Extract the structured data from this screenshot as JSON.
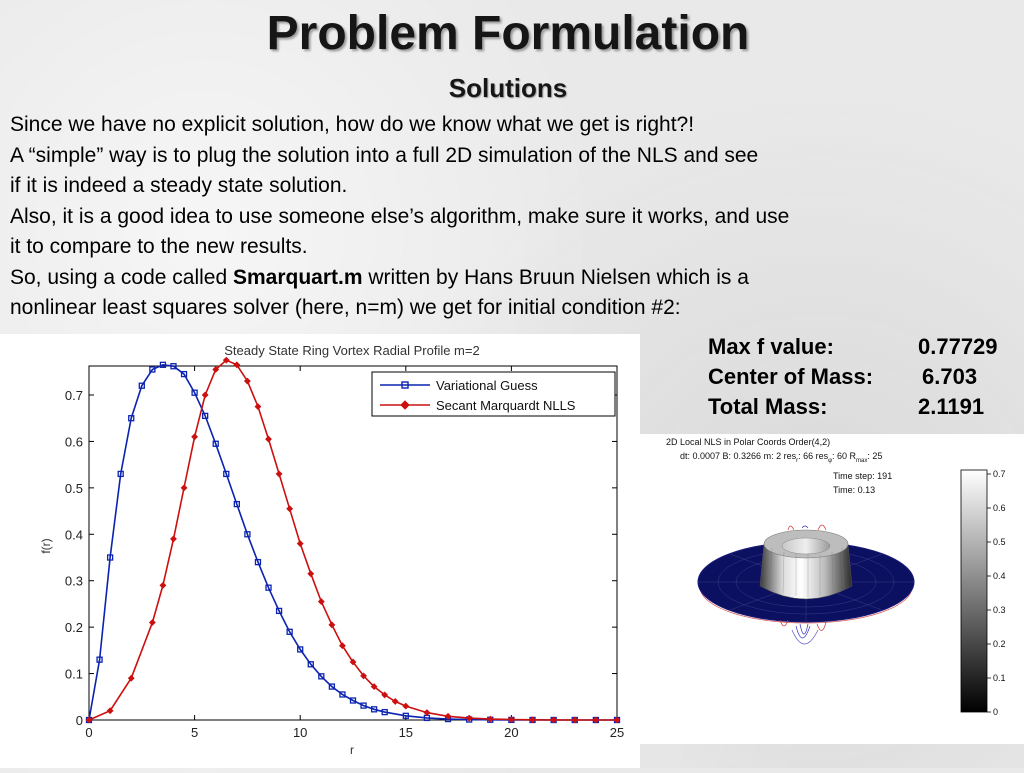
{
  "slide": {
    "title": "Problem Formulation",
    "subtitle": "Solutions",
    "lines": [
      {
        "text": "Since we have no explicit solution, how do we know what we get is right?!"
      },
      {
        "text": "A “simple” way is to plug the solution into a full 2D simulation of the NLS and see"
      },
      {
        "text": "if it is indeed a steady state solution."
      },
      {
        "text": "Also, it is a good idea to use someone else’s algorithm, make sure it works, and use"
      },
      {
        "text": " it to compare to the new results."
      },
      {
        "pre": "So, using a code called ",
        "bold": "Smarquart.m",
        "post": " written by Hans Bruun Nielsen which is a"
      },
      {
        "text": "nonlinear least squares solver (here, n=m) we get for initial condition #2:"
      }
    ]
  },
  "stats": [
    {
      "label": "Max f value:",
      "value": "0.77729"
    },
    {
      "label": "Center of Mass:",
      "value": "6.703"
    },
    {
      "label": "Total Mass:",
      "value": "2.1191"
    }
  ],
  "chart_data": {
    "type": "line",
    "title": "Steady State Ring Vortex Radial Profile m=2",
    "xlabel": "r",
    "ylabel": "f(r)",
    "xlim": [
      0,
      25
    ],
    "ylim": [
      0,
      0.77
    ],
    "xticks": [
      0,
      5,
      10,
      15,
      20,
      25
    ],
    "yticks": [
      0,
      0.1,
      0.2,
      0.3,
      0.4,
      0.5,
      0.6,
      0.7
    ],
    "grid": false,
    "legend_position": "top-right",
    "series": [
      {
        "name": "Variational Guess",
        "color": "#0b23b0",
        "marker": "square",
        "x": [
          0,
          0.5,
          1,
          1.5,
          2,
          2.5,
          3,
          3.5,
          4,
          4.5,
          5,
          5.5,
          6,
          6.5,
          7,
          7.5,
          8,
          8.5,
          9,
          9.5,
          10,
          10.5,
          11,
          11.5,
          12,
          12.5,
          13,
          13.5,
          14,
          15,
          16,
          17,
          18,
          19,
          20,
          21,
          22,
          23,
          24,
          25
        ],
        "y": [
          0,
          0.13,
          0.35,
          0.53,
          0.65,
          0.72,
          0.755,
          0.765,
          0.762,
          0.745,
          0.705,
          0.655,
          0.595,
          0.53,
          0.465,
          0.4,
          0.34,
          0.285,
          0.235,
          0.19,
          0.152,
          0.12,
          0.094,
          0.072,
          0.055,
          0.042,
          0.031,
          0.023,
          0.017,
          0.009,
          0.0045,
          0.002,
          0.001,
          0.0005,
          0.0002,
          0.0001,
          0,
          0,
          0,
          0
        ]
      },
      {
        "name": "Secant Marquardt NLLS",
        "color": "#cc1010",
        "marker": "diamond",
        "x": [
          0,
          1,
          2,
          3,
          3.5,
          4,
          4.5,
          5,
          5.5,
          6,
          6.5,
          7,
          7.5,
          8,
          8.5,
          9,
          9.5,
          10,
          10.5,
          11,
          11.5,
          12,
          12.5,
          13,
          13.5,
          14,
          14.5,
          15,
          16,
          17,
          18,
          19,
          20,
          21,
          22,
          23,
          24,
          25
        ],
        "y": [
          0,
          0.02,
          0.09,
          0.21,
          0.29,
          0.39,
          0.5,
          0.61,
          0.7,
          0.755,
          0.775,
          0.765,
          0.73,
          0.675,
          0.605,
          0.53,
          0.455,
          0.38,
          0.315,
          0.255,
          0.205,
          0.16,
          0.125,
          0.095,
          0.072,
          0.054,
          0.04,
          0.03,
          0.016,
          0.008,
          0.004,
          0.002,
          0.001,
          0.0005,
          0.0002,
          0,
          0,
          0
        ]
      }
    ]
  },
  "simulation": {
    "header1": "2D Local NLS in Polar Coords    Order(4,2)",
    "header2": "dt: 0.0007    B: 0.3266    m: 2    res",
    "res_r_sub": "r",
    "res_r": ": 66     res",
    "res_p_sub": "φ",
    "res_p": ": 60     R",
    "rmax_sub": "max",
    "rmax": ": 25",
    "time_step": "Time step:  191",
    "time": "Time:      0.13",
    "colorbar_ticks": [
      "0.7",
      "0.6",
      "0.5",
      "0.4",
      "0.3",
      "0.2",
      "0.1",
      "0"
    ]
  }
}
